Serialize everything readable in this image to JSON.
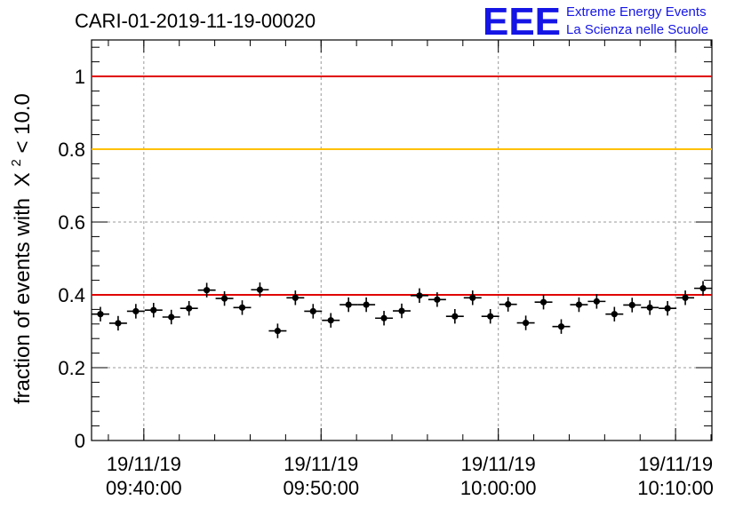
{
  "logo": {
    "mark": "EEE",
    "line1": "Extreme Energy Events",
    "line2": "La Scienza nelle Scuole",
    "color": "#1515e6"
  },
  "chart_data": {
    "type": "scatter",
    "title": "CARI-01-2019-11-19-00020",
    "ylabel": "fraction of events with",
    "ylabel_symbol": "X",
    "ylabel_exp": "2",
    "ylabel_tail": " < 10.0",
    "xlabel": "",
    "ylim": [
      0,
      1.1
    ],
    "yticks": [
      "0",
      "0.2",
      "0.4",
      "0.6",
      "0.8",
      "1"
    ],
    "xticks": [
      {
        "date": "19/11/19",
        "time": "09:40:00"
      },
      {
        "date": "19/11/19",
        "time": "09:50:00"
      },
      {
        "date": "19/11/19",
        "time": "10:00:00"
      },
      {
        "date": "19/11/19",
        "time": "10:10:00"
      }
    ],
    "grid": true,
    "reference_lines": [
      {
        "y": 1.0,
        "color": "#e00000"
      },
      {
        "y": 0.8,
        "color": "#ffc000"
      },
      {
        "y": 0.4,
        "color": "#e00000"
      }
    ],
    "x_range": [
      "09:37:03",
      "10:12:03"
    ],
    "series": [
      {
        "x": [
          "09:37:33",
          "09:38:33",
          "09:39:33",
          "09:40:33",
          "09:41:33",
          "09:42:33",
          "09:43:33",
          "09:44:33",
          "09:45:33",
          "09:46:33",
          "09:47:33",
          "09:48:33",
          "09:49:33",
          "09:50:33",
          "09:51:33",
          "09:52:33",
          "09:53:33",
          "09:54:33",
          "09:55:33",
          "09:56:33",
          "09:57:33",
          "09:58:33",
          "09:59:33",
          "10:00:33",
          "10:01:33",
          "10:02:33",
          "10:03:33",
          "10:04:33",
          "10:05:33",
          "10:06:33",
          "10:07:33",
          "10:08:33",
          "10:09:33",
          "10:10:33",
          "10:11:33"
        ],
        "y": [
          0.347,
          0.322,
          0.355,
          0.358,
          0.339,
          0.363,
          0.413,
          0.39,
          0.365,
          0.414,
          0.301,
          0.392,
          0.355,
          0.33,
          0.373,
          0.373,
          0.336,
          0.356,
          0.398,
          0.387,
          0.341,
          0.392,
          0.341,
          0.374,
          0.323,
          0.38,
          0.313,
          0.373,
          0.382,
          0.347,
          0.372,
          0.365,
          0.363,
          0.392,
          0.418
        ],
        "yerr": 0.02,
        "xerr_minutes": 0.5,
        "color": "#000000"
      }
    ]
  }
}
